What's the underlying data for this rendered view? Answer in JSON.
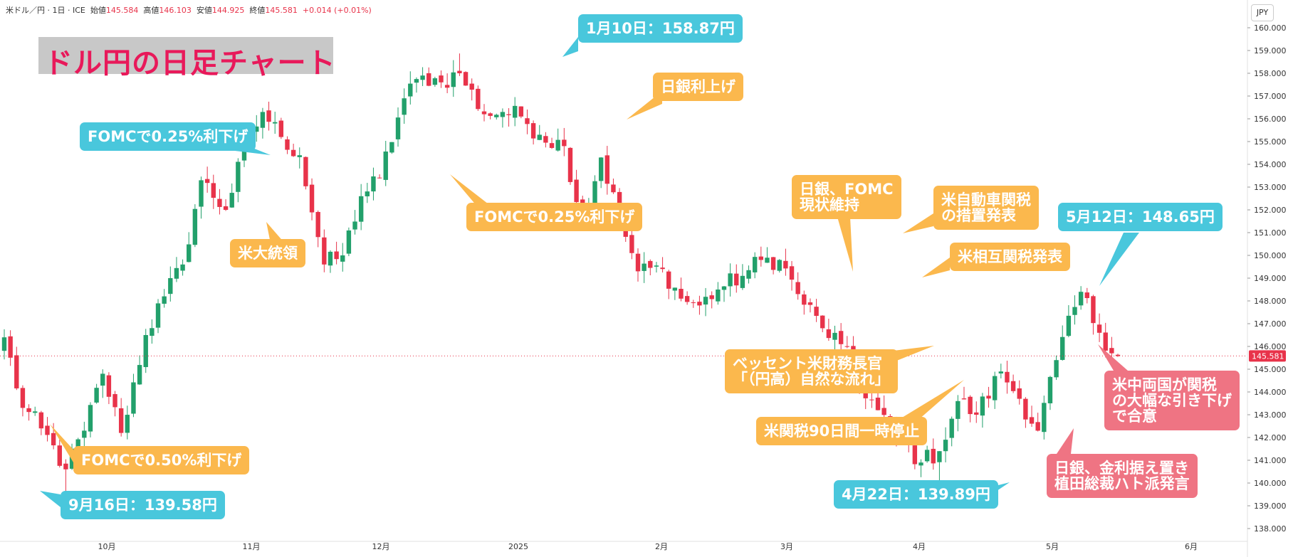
{
  "header": {
    "symbol": "米ドル／円 · 1日 · ICE",
    "open_label": "始値",
    "open": "145.584",
    "high_label": "高値",
    "high": "146.103",
    "low_label": "安値",
    "low": "144.925",
    "close_label": "終値",
    "close": "145.581",
    "change": "+0.014 (+0.01%)"
  },
  "currency": "JPY",
  "title": "ドル円の日足チャート",
  "colors": {
    "up": "#22a06b",
    "down": "#e8334a",
    "cyan": "#49c7dc",
    "orange": "#fbb84d",
    "pink": "#ef7483",
    "title": "#e8195a"
  },
  "annotations": [
    {
      "id": "jan10",
      "text": "1月10日：158.87円",
      "style": "cyan"
    },
    {
      "id": "boj-hike",
      "text": "日銀利上げ",
      "style": "orange"
    },
    {
      "id": "fomc-nov",
      "text": "FOMCで0.25%利下げ",
      "style": "cyan"
    },
    {
      "id": "us-election",
      "text": "米大統領",
      "style": "orange"
    },
    {
      "id": "fomc-dec",
      "text": "FOMCで0.25%利下げ",
      "style": "orange"
    },
    {
      "id": "boj-fomc-hold",
      "text": "日銀、FOMC\n現状維持",
      "style": "orange"
    },
    {
      "id": "auto-tariff",
      "text": "米自動車関税\nの措置発表",
      "style": "orange"
    },
    {
      "id": "reciprocal",
      "text": "米相互関税発表",
      "style": "orange"
    },
    {
      "id": "may12",
      "text": "5月12日：148.65円",
      "style": "cyan"
    },
    {
      "id": "bessent",
      "text": "ベッセント米財務長官\n「（円高）自然な流れ」",
      "style": "orange"
    },
    {
      "id": "tariff-pause",
      "text": "米関税90日間一時停止",
      "style": "orange"
    },
    {
      "id": "apr22",
      "text": "4月22日：139.89円",
      "style": "cyan"
    },
    {
      "id": "us-china",
      "text": "米中両国が関税\nの大幅な引き下げ\nで合意",
      "style": "pink"
    },
    {
      "id": "boj-hold",
      "text": "日銀、金利据え置き\n植田総裁ハト派発言",
      "style": "pink"
    },
    {
      "id": "fomc-sep",
      "text": "FOMCで0.50%利下げ",
      "style": "orange"
    },
    {
      "id": "sep16",
      "text": "9月16日：139.58円",
      "style": "cyan"
    }
  ],
  "chart_data": {
    "type": "candlestick",
    "title": "ドル円の日足チャート",
    "y_axis": {
      "label": "JPY",
      "range": [
        137.5,
        161.0
      ],
      "ticks": [
        "138.000",
        "139.000",
        "140.000",
        "141.000",
        "142.000",
        "143.000",
        "144.000",
        "145.000",
        "146.000",
        "147.000",
        "148.000",
        "149.000",
        "150.000",
        "151.000",
        "152.000",
        "153.000",
        "154.000",
        "155.000",
        "156.000",
        "157.000",
        "158.000",
        "159.000",
        "160.000"
      ]
    },
    "x_axis": {
      "ticks": [
        "10月",
        "11月",
        "12月",
        "2025",
        "2月",
        "3月",
        "4月",
        "5月",
        "6月"
      ]
    },
    "last_price": "145.581",
    "anchors": [
      {
        "date": "9月2日",
        "close": 146.4
      },
      {
        "date": "9月5日",
        "close": 143.3
      },
      {
        "date": "9月11日",
        "close": 142.4
      },
      {
        "date": "9月16日",
        "close": 140.6,
        "low": 139.58
      },
      {
        "date": "9月18日",
        "close": 142.3
      },
      {
        "date": "9月25日",
        "close": 144.8
      },
      {
        "date": "9月27日",
        "close": 142.2
      },
      {
        "date": "10月2日",
        "close": 146.5
      },
      {
        "date": "10月8日",
        "close": 148.2
      },
      {
        "date": "10月18日",
        "close": 149.6
      },
      {
        "date": "10月29日",
        "close": 153.3
      },
      {
        "date": "11月1日",
        "close": 152.0
      },
      {
        "date": "11月6日",
        "close": 154.6
      },
      {
        "date": "11月14日",
        "close": 156.3
      },
      {
        "date": "11月20日",
        "close": 155.2
      },
      {
        "date": "11月25日",
        "close": 154.4
      },
      {
        "date": "12月3日",
        "close": 149.6
      },
      {
        "date": "12月6日",
        "close": 150.0
      },
      {
        "date": "12月12日",
        "close": 152.6
      },
      {
        "date": "12月17日",
        "close": 153.4
      },
      {
        "date": "12月20日",
        "close": 156.9
      },
      {
        "date": "12月26日",
        "close": 157.9
      },
      {
        "date": "1月2日",
        "close": 157.6
      },
      {
        "date": "1月10日",
        "close": 158.0,
        "high": 158.87
      },
      {
        "date": "1月15日",
        "close": 156.2
      },
      {
        "date": "1月17日",
        "close": 156.3
      },
      {
        "date": "1月24日",
        "close": 156.1
      },
      {
        "date": "1月29日",
        "close": 155.3
      },
      {
        "date": "2月4日",
        "close": 154.8
      },
      {
        "date": "2月7日",
        "close": 151.4
      },
      {
        "date": "2月12日",
        "close": 154.3
      },
      {
        "date": "2月17日",
        "close": 151.6
      },
      {
        "date": "2月21日",
        "close": 149.3
      },
      {
        "date": "2月28日",
        "close": 149.4
      },
      {
        "date": "3月5日",
        "close": 148.1
      },
      {
        "date": "3月11日",
        "close": 147.8
      },
      {
        "date": "3月14日",
        "close": 148.5
      },
      {
        "date": "3月19日",
        "close": 149.1
      },
      {
        "date": "3月24日",
        "close": 149.8
      },
      {
        "date": "3月28日",
        "close": 149.8
      },
      {
        "date": "4月2日",
        "close": 148.3
      },
      {
        "date": "4月4日",
        "close": 146.8
      },
      {
        "date": "4月8日",
        "close": 146.1
      },
      {
        "date": "4月10日",
        "close": 144.4
      },
      {
        "date": "4月14日",
        "close": 143.2
      },
      {
        "date": "4月17日",
        "close": 142.1
      },
      {
        "date": "4月21日",
        "close": 140.9
      },
      {
        "date": "4月22日",
        "close": 141.4,
        "low": 139.89
      },
      {
        "date": "4月25日",
        "close": 143.6
      },
      {
        "date": "4月30日",
        "close": 143.0
      },
      {
        "date": "5月2日",
        "close": 144.9
      },
      {
        "date": "5月5日",
        "close": 143.7
      },
      {
        "date": "5月7日",
        "close": 142.3
      },
      {
        "date": "5月9日",
        "close": 145.4
      },
      {
        "date": "5月12日",
        "close": 148.4,
        "high": 148.65
      },
      {
        "date": "5月14日",
        "close": 146.6
      },
      {
        "date": "5月16日",
        "close": 145.58
      }
    ]
  }
}
